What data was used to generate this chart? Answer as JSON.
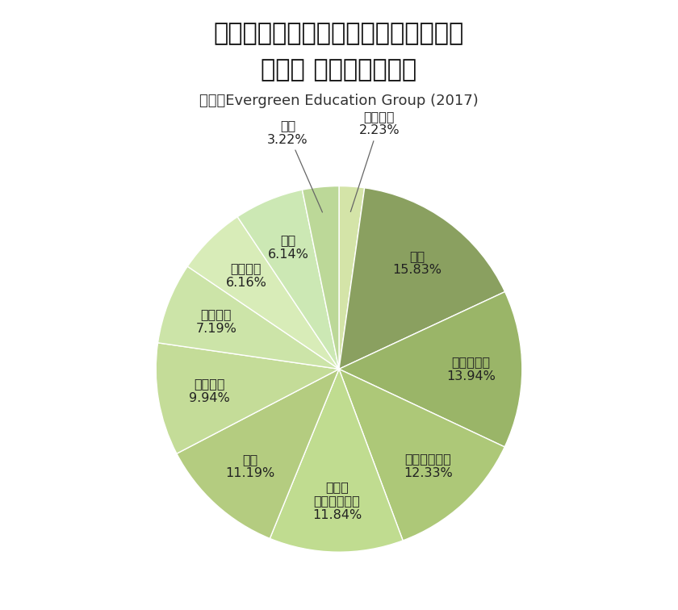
{
  "title_line1": "アメリカの州立バーチャル・スクール",
  "title_line2": "教科別 受講者数の割合",
  "subtitle": "出典：Evergreen Education Group (2017)",
  "slice_labels": [
    "そのほか",
    "社会",
    "算数・数学",
    "国語（英語）",
    "外国語\n（英語以外）",
    "理科",
    "保健体育",
    "選択科目",
    "運転教育",
    "技術",
    "芸術"
  ],
  "slice_pcts": [
    "2.23%",
    "15.83%",
    "13.94%",
    "12.33%",
    "11.84%",
    "11.19%",
    "9.94%",
    "7.19%",
    "6.16%",
    "6.14%",
    "3.22%"
  ],
  "values": [
    2.23,
    15.83,
    13.94,
    12.33,
    11.84,
    11.19,
    9.94,
    7.19,
    6.16,
    6.14,
    3.22
  ],
  "colors": [
    "#d4e4a8",
    "#8aA060",
    "#9ab568",
    "#adc878",
    "#c0dc90",
    "#b4cc80",
    "#c4dc98",
    "#cce4a8",
    "#d8ecb8",
    "#cce8b4",
    "#bcd898"
  ],
  "background_color": "#ffffff",
  "title_fontsize": 22,
  "subtitle_fontsize": 13,
  "label_fontsize": 11.5
}
